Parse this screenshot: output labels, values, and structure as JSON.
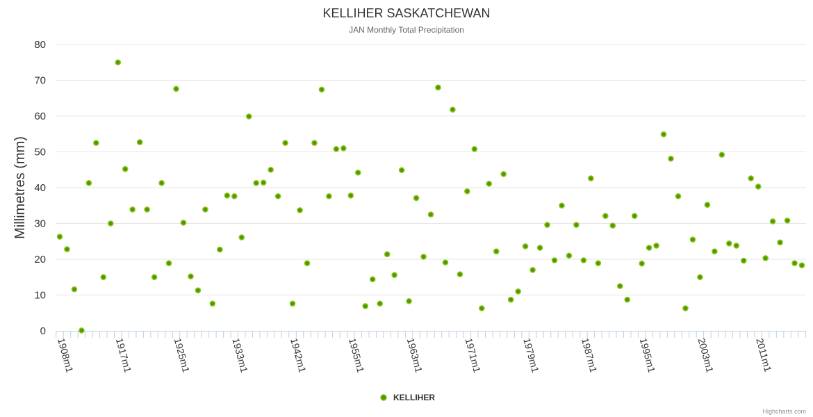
{
  "chart_data": {
    "type": "scatter",
    "title": "KELLIHER SASKATCHEWAN",
    "subtitle": "JAN Monthly Total Precipitation",
    "xlabel": "",
    "ylabel": "Millimetres (mm)",
    "ylim": [
      0,
      80
    ],
    "y_ticks": [
      0,
      10,
      20,
      30,
      40,
      50,
      60,
      70,
      80
    ],
    "grid": true,
    "x_tick_labels": [
      "1908m1",
      "1917m1",
      "1925m1",
      "1933m1",
      "1942m1",
      "1955m1",
      "1963m1",
      "1971m1",
      "1979m1",
      "1987m1",
      "1995m1",
      "2003m1",
      "2011m1"
    ],
    "x_tick_interval": 8,
    "legend": {
      "position": "bottom-center",
      "entries": [
        "KELLIHER"
      ]
    },
    "credits": "Highcharts.com",
    "colors": {
      "marker_fill": "#4c9900",
      "marker_stroke": "#8fc31f",
      "grid": "#e6e6e6",
      "axis": "#c0d0e0"
    },
    "series": [
      {
        "name": "KELLIHER",
        "values": [
          26.3,
          22.8,
          11.6,
          0.1,
          41.3,
          52.5,
          15.0,
          30.0,
          75.0,
          45.2,
          33.9,
          52.7,
          33.9,
          15.0,
          41.3,
          18.9,
          67.6,
          30.2,
          15.2,
          11.3,
          33.9,
          7.6,
          22.7,
          37.8,
          37.6,
          26.1,
          59.9,
          41.3,
          41.4,
          45.0,
          37.6,
          52.5,
          7.6,
          33.7,
          18.9,
          52.5,
          67.4,
          37.6,
          50.8,
          51.0,
          37.8,
          44.2,
          6.9,
          14.4,
          7.6,
          21.4,
          15.6,
          44.9,
          8.3,
          37.1,
          20.7,
          32.5,
          68.0,
          19.1,
          61.8,
          15.8,
          39.0,
          50.8,
          6.3,
          41.1,
          22.2,
          43.8,
          8.7,
          11.0,
          23.6,
          17.0,
          23.2,
          29.6,
          19.7,
          35.0,
          21.0,
          29.6,
          19.7,
          42.6,
          18.9,
          32.1,
          29.4,
          12.5,
          8.7,
          32.1,
          18.8,
          23.2,
          23.8,
          54.9,
          48.1,
          37.6,
          6.3,
          25.5,
          15.0,
          35.2,
          22.2,
          49.2,
          24.4,
          23.8,
          19.6,
          42.6,
          40.3,
          20.3,
          30.6,
          24.7,
          30.8,
          18.9,
          18.3
        ]
      }
    ]
  }
}
